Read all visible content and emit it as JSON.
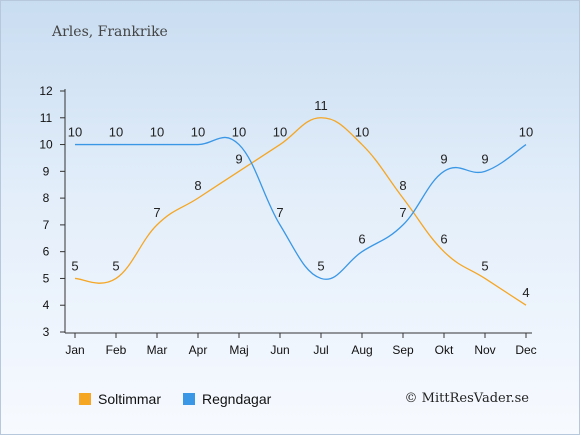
{
  "header": {
    "place": "Arles, Frankrike"
  },
  "credit": "© MittResVader.se",
  "chart_data": {
    "type": "line",
    "categories": [
      "Jan",
      "Feb",
      "Mar",
      "Apr",
      "Maj",
      "Jun",
      "Jul",
      "Aug",
      "Sep",
      "Okt",
      "Nov",
      "Dec"
    ],
    "ylim": [
      3,
      12
    ],
    "yticks": [
      3,
      4,
      5,
      6,
      7,
      8,
      9,
      10,
      11,
      12
    ],
    "grid": false,
    "legend_position": "bottom-left",
    "series": [
      {
        "name": "Soltimmar",
        "color": "#f5a623",
        "values": [
          5,
          5,
          7,
          8,
          9,
          10,
          11,
          10,
          8,
          6,
          5,
          4
        ]
      },
      {
        "name": "Regndagar",
        "color": "#3a97e6",
        "values": [
          10,
          10,
          10,
          10,
          10,
          7,
          5,
          6,
          7,
          9,
          9,
          10
        ]
      }
    ]
  }
}
